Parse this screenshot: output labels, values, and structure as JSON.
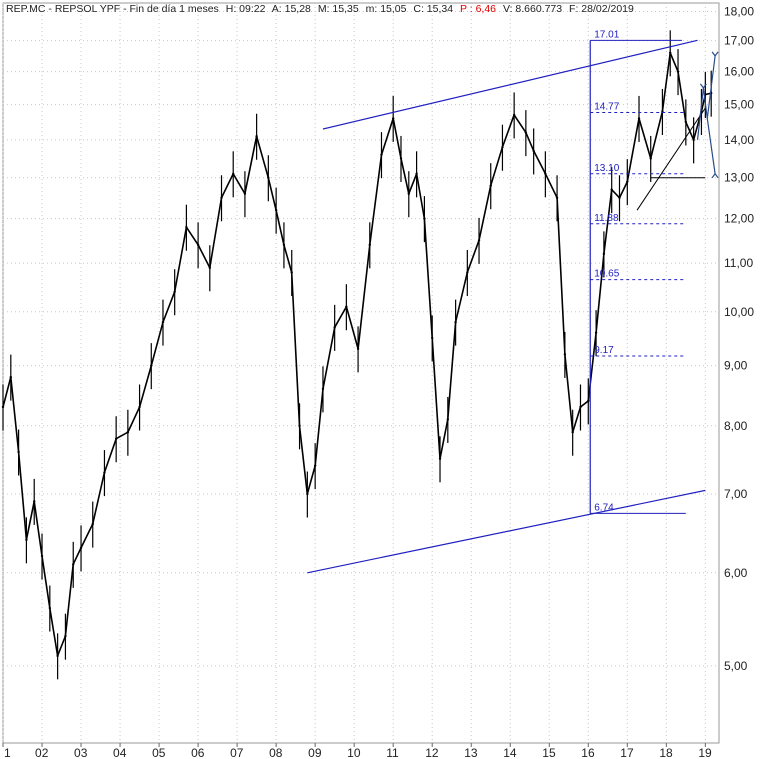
{
  "header": {
    "symbol": "REP.MC - REPSOL YPF - Fin de día 1 meses",
    "h": "H: 09:22",
    "a": "A: 15,28",
    "m": "M: 15,35",
    "mm": "m: 15,05",
    "c": "C: 15,34",
    "p": "P : 6,46",
    "v": "V: 8.660.773",
    "f": "F: 28/02/2019"
  },
  "colors": {
    "price": "#000000",
    "lines": "#2020c0",
    "grid": "#c8c8c8",
    "header_red": "#e00000"
  },
  "chart_data": {
    "type": "line",
    "y_scale": "log",
    "ylim": [
      4.3,
      18.3
    ],
    "xlim": [
      2001.0,
      2019.35
    ],
    "y_ticks": [
      "18,00",
      "17,00",
      "16,00",
      "15,00",
      "14,00",
      "13,00",
      "12,00",
      "11,00",
      "10,00",
      "9,00",
      "8,00",
      "7,00",
      "6,00",
      "5,00"
    ],
    "y_tick_values": [
      18,
      17,
      16,
      15,
      14,
      13,
      12,
      11,
      10,
      9,
      8,
      7,
      6,
      5
    ],
    "x_ticks": [
      "1",
      "02",
      "03",
      "04",
      "05",
      "06",
      "07",
      "08",
      "09",
      "10",
      "11",
      "12",
      "13",
      "14",
      "15",
      "16",
      "17",
      "18",
      "19"
    ],
    "x_tick_values": [
      2001,
      2002,
      2003,
      2004,
      2005,
      2006,
      2007,
      2008,
      2009,
      2010,
      2011,
      2012,
      2013,
      2014,
      2015,
      2016,
      2017,
      2018,
      2019
    ],
    "grid": true,
    "series": [
      {
        "x": [
          2001.0,
          2001.2,
          2001.4,
          2001.6,
          2001.8,
          2002.0,
          2002.2,
          2002.4,
          2002.6,
          2002.8,
          2003.0,
          2003.3,
          2003.6,
          2003.9,
          2004.2,
          2004.5,
          2004.8,
          2005.1,
          2005.4,
          2005.7,
          2006.0,
          2006.3,
          2006.6,
          2006.9,
          2007.2,
          2007.5,
          2007.8,
          2008.0,
          2008.2,
          2008.4,
          2008.6,
          2008.8,
          2009.0,
          2009.2,
          2009.5,
          2009.8,
          2010.1,
          2010.4,
          2010.7,
          2011.0,
          2011.2,
          2011.4,
          2011.6,
          2011.8,
          2012.0,
          2012.2,
          2012.4,
          2012.6,
          2012.9,
          2013.2,
          2013.5,
          2013.8,
          2014.1,
          2014.4,
          2014.6,
          2014.9,
          2015.2,
          2015.4,
          2015.6,
          2015.8,
          2016.0,
          2016.2,
          2016.4,
          2016.6,
          2016.8,
          2017.0,
          2017.3,
          2017.6,
          2017.9,
          2018.1,
          2018.3,
          2018.5,
          2018.7,
          2018.9,
          2019.0,
          2019.15
        ],
        "y": [
          8.3,
          8.8,
          7.6,
          6.4,
          6.9,
          6.2,
          5.6,
          5.1,
          5.3,
          6.1,
          6.3,
          6.6,
          7.3,
          7.8,
          7.9,
          8.3,
          9.0,
          9.8,
          10.4,
          11.8,
          11.4,
          10.9,
          12.5,
          13.1,
          12.6,
          14.1,
          13.0,
          12.2,
          11.4,
          10.8,
          8.0,
          7.0,
          7.4,
          8.6,
          9.7,
          10.1,
          9.3,
          11.4,
          13.6,
          14.6,
          13.5,
          12.6,
          13.1,
          12.0,
          9.5,
          7.5,
          8.1,
          9.8,
          10.8,
          11.5,
          12.8,
          13.8,
          14.7,
          14.2,
          13.7,
          13.1,
          12.5,
          9.2,
          7.9,
          8.3,
          8.4,
          9.6,
          11.2,
          12.7,
          12.5,
          12.9,
          14.6,
          13.5,
          14.8,
          16.6,
          16.0,
          14.5,
          14.0,
          14.8,
          15.3,
          15.34
        ]
      }
    ],
    "channel_upper": {
      "x": [
        2009.2,
        2018.8
      ],
      "y": [
        14.3,
        17.01
      ]
    },
    "channel_lower": {
      "x": [
        2008.8,
        2019.0
      ],
      "y": [
        6.0,
        7.05
      ]
    },
    "fib_levels": [
      {
        "label": "17.01",
        "value": 17.01
      },
      {
        "label": "14.77",
        "value": 14.77
      },
      {
        "label": "13.10",
        "value": 13.1
      },
      {
        "label": "11.88",
        "value": 11.88
      },
      {
        "label": "10.65",
        "value": 10.65
      },
      {
        "label": "9.17",
        "value": 9.17
      },
      {
        "label": "6.74",
        "value": 6.74
      }
    ]
  }
}
